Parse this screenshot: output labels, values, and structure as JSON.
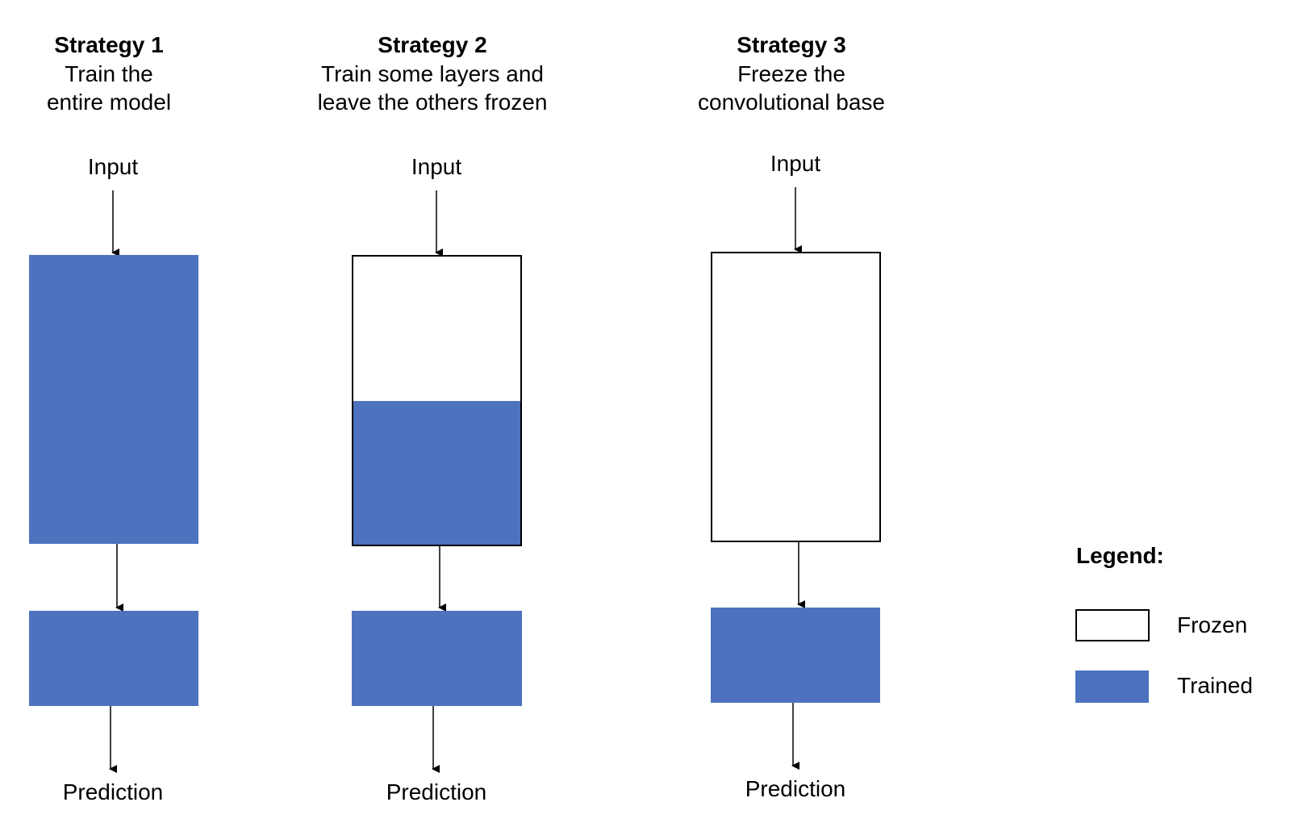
{
  "colors": {
    "trained": "#4d72be",
    "frozen": "#ffffff",
    "outline": "#000000"
  },
  "strategies": [
    {
      "title": "Strategy 1",
      "subtitle_line1": "Train the",
      "subtitle_line2": "entire model",
      "input_label": "Input",
      "output_label": "Prediction"
    },
    {
      "title": "Strategy 2",
      "subtitle_line1": "Train some layers and",
      "subtitle_line2": "leave the others frozen",
      "input_label": "Input",
      "output_label": "Prediction"
    },
    {
      "title": "Strategy 3",
      "subtitle_line1": "Freeze the",
      "subtitle_line2": "convolutional base",
      "input_label": "Input",
      "output_label": "Prediction"
    }
  ],
  "legend": {
    "title": "Legend:",
    "frozen_label": "Frozen",
    "trained_label": "Trained"
  }
}
